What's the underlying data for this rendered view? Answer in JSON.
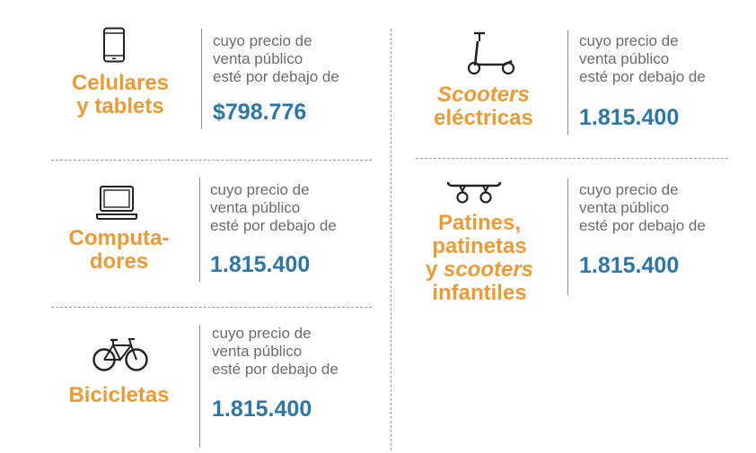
{
  "items": [
    {
      "icon": "smartphone-icon",
      "category_lines": [
        "Celulares",
        "y tablets"
      ],
      "description": [
        "cuyo precio de",
        "venta público",
        "esté por debajo de"
      ],
      "price": "$798.776"
    },
    {
      "icon": "laptop-icon",
      "category_lines": [
        "Computa-",
        "dores"
      ],
      "description": [
        "cuyo precio de",
        "venta público",
        "esté por debajo de"
      ],
      "price": "1.815.400"
    },
    {
      "icon": "bicycle-icon",
      "category_lines": [
        "Bicicletas"
      ],
      "description": [
        "cuyo precio de",
        "venta público",
        "esté por debajo de"
      ],
      "price": "1.815.400"
    },
    {
      "icon": "scooter-icon",
      "category_lines": [
        "Scooters",
        "eléctricas"
      ],
      "description": [
        "cuyo precio de",
        "venta público",
        "esté por debajo de"
      ],
      "price": "1.815.400"
    },
    {
      "icon": "skateboard-icon",
      "category_parts": {
        "line1": "Patines,",
        "line2": "patinetas",
        "line3_prefix": "y ",
        "line3_emphasis": "scooters",
        "line4": "infantiles"
      },
      "description": [
        "cuyo precio de",
        "venta público",
        "esté por debajo de"
      ],
      "price": "1.815.400"
    }
  ],
  "colors": {
    "category": "#ee9a33",
    "price": "#2b77a8",
    "description": "#6b6b6b",
    "divider": "#9a9a9a"
  }
}
